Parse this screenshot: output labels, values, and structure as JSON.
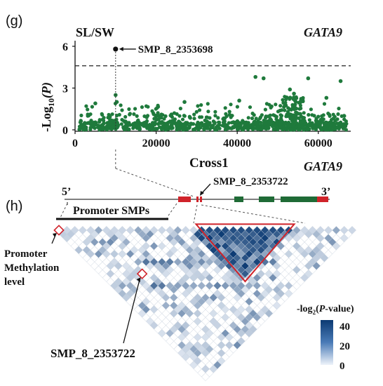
{
  "panel_g": {
    "label": "(g)",
    "trait": "SL/SW",
    "gene": "GATA9",
    "ylabel_prefix": "-Log",
    "ylabel_sub": "10",
    "ylabel_var": "(P)",
    "xlabel": "Cross1",
    "highlight_label": "SMP_8_2353698"
  },
  "panel_h": {
    "label": "(h)",
    "gene": "GATA9",
    "five_prime": "5’",
    "three_prime": "3’",
    "snp_label": "SMP_8_2353722",
    "promoter_label": "Promoter SMPs",
    "methylation_label": [
      "Promoter",
      "Methylation",
      "level"
    ],
    "bottom_label": "SMP_8_2353722"
  },
  "legend": {
    "title_prefix": "-log",
    "title_sub": "2",
    "title_suffix_open": "(",
    "title_var": "P",
    "title_suffix_close": "-value)",
    "ticks": [
      "40",
      "20",
      "0"
    ]
  },
  "colors": {
    "points": "#1f7a3c",
    "highlight": "#111111",
    "exon": "#1f6b36",
    "promoter_exon": "#d0232a",
    "ld_high": "#0b3a73",
    "ld_low": "#e9eff7",
    "red_box": "#d0232a"
  },
  "chart_data": [
    {
      "type": "scatter",
      "title": "SL/SW",
      "subtitle": "GATA9",
      "xlabel": "Cross1",
      "ylabel": "-Log10(P)",
      "xlim": [
        0,
        68000
      ],
      "ylim": [
        0,
        6.2
      ],
      "xticks": [
        "0",
        "20000",
        "40000",
        "60000"
      ],
      "yticks": [
        "0",
        "3",
        "6"
      ],
      "threshold": 4.6,
      "highlight": {
        "name": "SMP_8_2353698",
        "x": 10000,
        "y": 5.8
      },
      "peaks": [
        {
          "x": 10000,
          "y": 2.5
        },
        {
          "x": 10300,
          "y": 2.0
        },
        {
          "x": 44500,
          "y": 3.8
        },
        {
          "x": 46500,
          "y": 3.7
        },
        {
          "x": 53000,
          "y": 2.9
        },
        {
          "x": 54000,
          "y": 2.6
        },
        {
          "x": 57500,
          "y": 3.7
        },
        {
          "x": 65500,
          "y": 3.5
        },
        {
          "x": 62000,
          "y": 2.3
        },
        {
          "x": 27000,
          "y": 2.0
        },
        {
          "x": 40500,
          "y": 2.1
        },
        {
          "x": 5000,
          "y": 1.9
        }
      ]
    },
    {
      "type": "heatmap",
      "title": "GATA9",
      "legend_title": "-log2(P-value)",
      "range": [
        0,
        40
      ],
      "n_markers": 38
    }
  ]
}
